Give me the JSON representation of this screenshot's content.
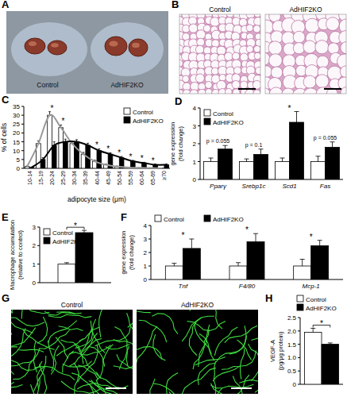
{
  "chart_data": [
    {
      "type": "bar",
      "title": "C",
      "y_label": [
        "% of cells"
      ],
      "x_label": "adipocyte size (μm)",
      "categories": [
        "10-14",
        "15-19",
        "20-24",
        "25-29",
        "30-34",
        "35-39",
        "40-44",
        "45-49",
        "50-54",
        "55-59",
        "60-64",
        "65-69",
        "≥70"
      ],
      "series": [
        {
          "name": "Control",
          "color": "#ffffff",
          "line_style": "smooth",
          "values": [
            1,
            14,
            30,
            23,
            14,
            8,
            4,
            2,
            1,
            0.5,
            0.3,
            0.2,
            0
          ],
          "errors": [
            0.3,
            1.5,
            2,
            1.5,
            1.2,
            1,
            0.6,
            0.4,
            0.3,
            0.2,
            0.1,
            0.1,
            0
          ]
        },
        {
          "name": "AdHIF2KO",
          "color": "#000000",
          "line_style": "smooth",
          "values": [
            0.5,
            5,
            13,
            15,
            15,
            13,
            10,
            8,
            6,
            4,
            3,
            2,
            2
          ],
          "errors": [
            0.2,
            1,
            2,
            1.5,
            1.2,
            1.2,
            1,
            0.8,
            0.7,
            0.5,
            0.4,
            0.4,
            0.5
          ]
        }
      ],
      "ylim": [
        0,
        35
      ],
      "yticks": [
        0,
        5,
        10,
        15,
        20,
        25,
        30,
        35
      ],
      "legend": "top-right",
      "annotations": [
        {
          "category": "20-24",
          "text": "*"
        },
        {
          "category": "25-29",
          "text": "*"
        },
        {
          "category": "40-44",
          "text": "*"
        },
        {
          "category": "45-49",
          "text": "*"
        },
        {
          "category": "50-54",
          "text": "*"
        },
        {
          "category": "55-59",
          "text": "*"
        },
        {
          "category": "60-64",
          "text": "*"
        },
        {
          "category": "65-69",
          "text": "*"
        }
      ]
    },
    {
      "type": "bar",
      "title": "D",
      "y_label": [
        "gene expression",
        "(fold change)"
      ],
      "categories": [
        "Pparγ",
        "Srebp1c",
        "Scd1",
        "Fas"
      ],
      "series": [
        {
          "name": "Control",
          "color": "#ffffff",
          "values": [
            1,
            1,
            1,
            1
          ],
          "errors": [
            0.2,
            0.15,
            0.2,
            0.3
          ]
        },
        {
          "name": "AdHIF2KO",
          "color": "#000000",
          "values": [
            1.7,
            1.4,
            3.2,
            1.8
          ],
          "errors": [
            0.2,
            0.3,
            0.6,
            0.3
          ]
        }
      ],
      "ylim": [
        0,
        4
      ],
      "yticks": [
        0,
        1,
        2,
        3,
        4
      ],
      "legend": "top-left",
      "annotations": [
        {
          "category": "Pparγ",
          "text": "p = 0.055"
        },
        {
          "category": "Srebp1c",
          "text": "p = 0.1"
        },
        {
          "category": "Scd1",
          "text": "*"
        },
        {
          "category": "Fas",
          "text": "p = 0.055"
        }
      ]
    },
    {
      "type": "bar",
      "title": "E",
      "y_label": [
        "Macrophage accumulation",
        "(relative to control)"
      ],
      "categories": [
        null
      ],
      "series": [
        {
          "name": "Control",
          "color": "#ffffff",
          "values": [
            1.0
          ],
          "errors": [
            0.08
          ]
        },
        {
          "name": "AdHIF2KO",
          "color": "#000000",
          "values": [
            2.7
          ],
          "errors": [
            0.12
          ]
        }
      ],
      "ylim": [
        0,
        3
      ],
      "yticks": [
        0,
        1,
        2,
        3
      ],
      "legend": "top-left",
      "annotations": [
        {
          "text": "*"
        }
      ]
    },
    {
      "type": "bar",
      "title": "F",
      "y_label": [
        "gene expression",
        "(fold change)"
      ],
      "categories": [
        "Tnf",
        "F4/80",
        "Mcp-1"
      ],
      "series": [
        {
          "name": "Control",
          "color": "#ffffff",
          "values": [
            1,
            1,
            1
          ],
          "errors": [
            0.2,
            0.25,
            0.5
          ]
        },
        {
          "name": "AdHIF2KO",
          "color": "#000000",
          "values": [
            2.3,
            2.8,
            2.5
          ],
          "errors": [
            0.7,
            0.6,
            0.4
          ]
        }
      ],
      "ylim": [
        0,
        4
      ],
      "yticks": [
        0,
        1,
        2,
        3,
        4
      ],
      "legend": "top",
      "annotations": [
        {
          "category": "Tnf",
          "text": "*"
        },
        {
          "category": "F4/80",
          "text": "*"
        },
        {
          "category": "Mcp-1",
          "text": "*"
        }
      ]
    },
    {
      "type": "bar",
      "title": "H",
      "y_label": [
        "VEGF-A",
        "(pg/μg protein)"
      ],
      "categories": [
        null
      ],
      "series": [
        {
          "name": "Control",
          "color": "#ffffff",
          "values": [
            1.95
          ],
          "errors": [
            0.15
          ]
        },
        {
          "name": "AdHIF2KO",
          "color": "#000000",
          "values": [
            1.5
          ],
          "errors": [
            0.05
          ]
        }
      ],
      "ylim": [
        0,
        2.5
      ],
      "yticks": [
        0,
        0.5,
        {
          "value": 1,
          "label": "1.0"
        },
        1.5,
        {
          "value": 2,
          "label": "2.0"
        },
        2.5
      ],
      "legend": "top",
      "annotations": [
        {
          "text": "*"
        }
      ]
    }
  ],
  "images": [
    {
      "title": "A",
      "labels": [
        "Control",
        "AdHIF2KO"
      ]
    },
    {
      "title": "B",
      "labels": [
        "Control",
        "AdHIF2KO"
      ]
    },
    {
      "title": "G",
      "labels": [
        "Control",
        "AdHIF2KO"
      ]
    }
  ]
}
